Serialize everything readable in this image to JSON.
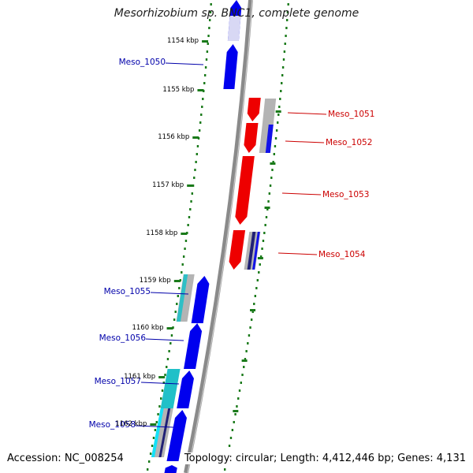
{
  "title": "Mesorhizobium sp. BNC1, complete genome",
  "accession": "Accession: NC_008254",
  "summary": "Topology: circular; Length: 4,412,446 bp; Genes: 4,131",
  "colors": {
    "plus_strand_label": "#0000aa",
    "minus_strand_label": "#cc0000",
    "plus_gene": "#0000ee",
    "minus_gene": "#ee0000",
    "feature_cyan": "#20c0c8",
    "feature_grey": "#b4b4b4",
    "feature_navy": "#10106e",
    "backbone": "#8a8a8a",
    "track_dots": "#1a7a1a"
  },
  "scale_labels": [
    "1154 kbp",
    "1155 kbp",
    "1156 kbp",
    "1157 kbp",
    "1158 kbp",
    "1159 kbp",
    "1160 kbp",
    "1161 kbp",
    "1162 kbp"
  ],
  "plus_labels": [
    "Meso_1050",
    "Meso_1055",
    "Meso_1056",
    "Meso_1057",
    "Meso_1058"
  ],
  "minus_labels": [
    "Meso_1051",
    "Meso_1052",
    "Meso_1053",
    "Meso_1054"
  ]
}
